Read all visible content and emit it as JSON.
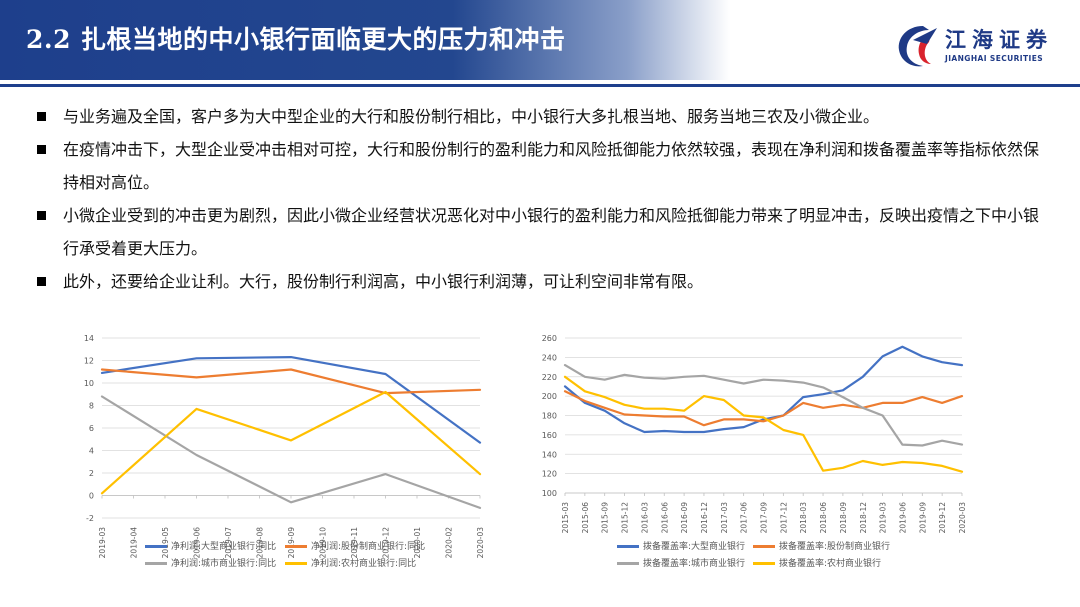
{
  "header": {
    "section_number": "2.2",
    "title": "扎根当地的中小银行面临更大的压力和冲击",
    "logo_cn": "江海证券",
    "logo_en": "JIANGHAI SECURITIES"
  },
  "bullets": [
    "与业务遍及全国，客户多为大中型企业的大行和股份制行相比，中小银行大多扎根当地、服务当地三农及小微企业。",
    "在疫情冲击下，大型企业受冲击相对可控，大行和股份制行的盈利能力和风险抵御能力依然较强，表现在净利润和拨备覆盖率等指标依然保持相对高位。",
    "小微企业受到的冲击更为剧烈，因此小微企业经营状况恶化对中小银行的盈利能力和风险抵御能力带来了明显冲击，反映出疫情之下中小银行承受着更大压力。",
    "此外，还要给企业让利。大行，股份制行利润高，中小银行利润薄，可让利空间非常有限。"
  ],
  "colors": {
    "blue": "#4472c4",
    "orange": "#ed7d31",
    "gray": "#a5a5a5",
    "yellow": "#ffc000",
    "header": "#1e3f8c"
  },
  "chart_data": [
    {
      "type": "line",
      "title": "",
      "categories": [
        "2019-03",
        "2019-04",
        "2019-05",
        "2019-06",
        "2019-07",
        "2019-08",
        "2019-09",
        "2019-10",
        "2019-11",
        "2019-12",
        "2020-01",
        "2020-02",
        "2020-03"
      ],
      "ylim": [
        -2,
        14
      ],
      "yticks": [
        -2,
        0,
        2,
        4,
        6,
        8,
        10,
        12,
        14
      ],
      "series": [
        {
          "name": "净利润:大型商业银行:同比",
          "color": "#4472c4",
          "points": [
            [
              0,
              10.9
            ],
            [
              3,
              12.2
            ],
            [
              6,
              12.3
            ],
            [
              9,
              10.8
            ],
            [
              12,
              4.7
            ]
          ]
        },
        {
          "name": "净利润:股份制商业银行:同比",
          "color": "#ed7d31",
          "points": [
            [
              0,
              11.2
            ],
            [
              3,
              10.5
            ],
            [
              6,
              11.2
            ],
            [
              9,
              9.1
            ],
            [
              12,
              9.4
            ]
          ]
        },
        {
          "name": "净利润:城市商业银行:同比",
          "color": "#a5a5a5",
          "points": [
            [
              0,
              8.8
            ],
            [
              3,
              3.6
            ],
            [
              6,
              -0.6
            ],
            [
              9,
              1.9
            ],
            [
              12,
              -1.1
            ]
          ]
        },
        {
          "name": "净利润:农村商业银行:同比",
          "color": "#ffc000",
          "points": [
            [
              0,
              0.2
            ],
            [
              3,
              7.7
            ],
            [
              6,
              4.9
            ],
            [
              9,
              9.2
            ],
            [
              12,
              1.9
            ]
          ]
        }
      ]
    },
    {
      "type": "line",
      "title": "",
      "categories": [
        "2015-03",
        "2015-06",
        "2015-09",
        "2015-12",
        "2016-03",
        "2016-06",
        "2016-09",
        "2016-12",
        "2017-03",
        "2017-06",
        "2017-09",
        "2017-12",
        "2018-03",
        "2018-06",
        "2018-09",
        "2018-12",
        "2019-03",
        "2019-06",
        "2019-09",
        "2019-12",
        "2020-03"
      ],
      "ylim": [
        100,
        260
      ],
      "yticks": [
        100,
        120,
        140,
        160,
        180,
        200,
        220,
        240,
        260
      ],
      "series": [
        {
          "name": "拨备覆盖率:大型商业银行",
          "color": "#4472c4",
          "points": [
            [
              0,
              210
            ],
            [
              1,
              193
            ],
            [
              2,
              185
            ],
            [
              3,
              172
            ],
            [
              4,
              163
            ],
            [
              5,
              164
            ],
            [
              6,
              163
            ],
            [
              7,
              163
            ],
            [
              8,
              166
            ],
            [
              9,
              168
            ],
            [
              10,
              176
            ],
            [
              11,
              180
            ],
            [
              12,
              199
            ],
            [
              13,
              202
            ],
            [
              14,
              206
            ],
            [
              15,
              220
            ],
            [
              16,
              241
            ],
            [
              17,
              251
            ],
            [
              18,
              241
            ],
            [
              19,
              235
            ],
            [
              20,
              232
            ]
          ]
        },
        {
          "name": "拨备覆盖率:股份制商业银行",
          "color": "#ed7d31",
          "points": [
            [
              0,
              205
            ],
            [
              1,
              195
            ],
            [
              2,
              188
            ],
            [
              3,
              181
            ],
            [
              4,
              180
            ],
            [
              5,
              179
            ],
            [
              6,
              179
            ],
            [
              7,
              170
            ],
            [
              8,
              176
            ],
            [
              9,
              176
            ],
            [
              10,
              174
            ],
            [
              11,
              180
            ],
            [
              12,
              193
            ],
            [
              13,
              188
            ],
            [
              14,
              191
            ],
            [
              15,
              188
            ],
            [
              16,
              193
            ],
            [
              17,
              193
            ],
            [
              18,
              199
            ],
            [
              19,
              193
            ],
            [
              20,
              200
            ]
          ]
        },
        {
          "name": "拨备覆盖率:城市商业银行",
          "color": "#a5a5a5",
          "points": [
            [
              0,
              232
            ],
            [
              1,
              220
            ],
            [
              2,
              217
            ],
            [
              3,
              222
            ],
            [
              4,
              219
            ],
            [
              5,
              218
            ],
            [
              6,
              220
            ],
            [
              7,
              221
            ],
            [
              8,
              217
            ],
            [
              9,
              213
            ],
            [
              10,
              217
            ],
            [
              11,
              216
            ],
            [
              12,
              214
            ],
            [
              13,
              209
            ],
            [
              14,
              199
            ],
            [
              15,
              188
            ],
            [
              16,
              180
            ],
            [
              17,
              150
            ],
            [
              18,
              149
            ],
            [
              19,
              154
            ],
            [
              20,
              150
            ]
          ]
        },
        {
          "name": "拨备覆盖率:农村商业银行",
          "color": "#ffc000",
          "points": [
            [
              0,
              220
            ],
            [
              1,
              205
            ],
            [
              2,
              199
            ],
            [
              3,
              191
            ],
            [
              4,
              187
            ],
            [
              5,
              187
            ],
            [
              6,
              185
            ],
            [
              7,
              200
            ],
            [
              8,
              196
            ],
            [
              9,
              180
            ],
            [
              10,
              178
            ],
            [
              11,
              165
            ],
            [
              12,
              160
            ],
            [
              13,
              123
            ],
            [
              14,
              126
            ],
            [
              15,
              133
            ],
            [
              16,
              129
            ],
            [
              17,
              132
            ],
            [
              18,
              131
            ],
            [
              19,
              128
            ],
            [
              20,
              122
            ]
          ]
        }
      ]
    }
  ]
}
